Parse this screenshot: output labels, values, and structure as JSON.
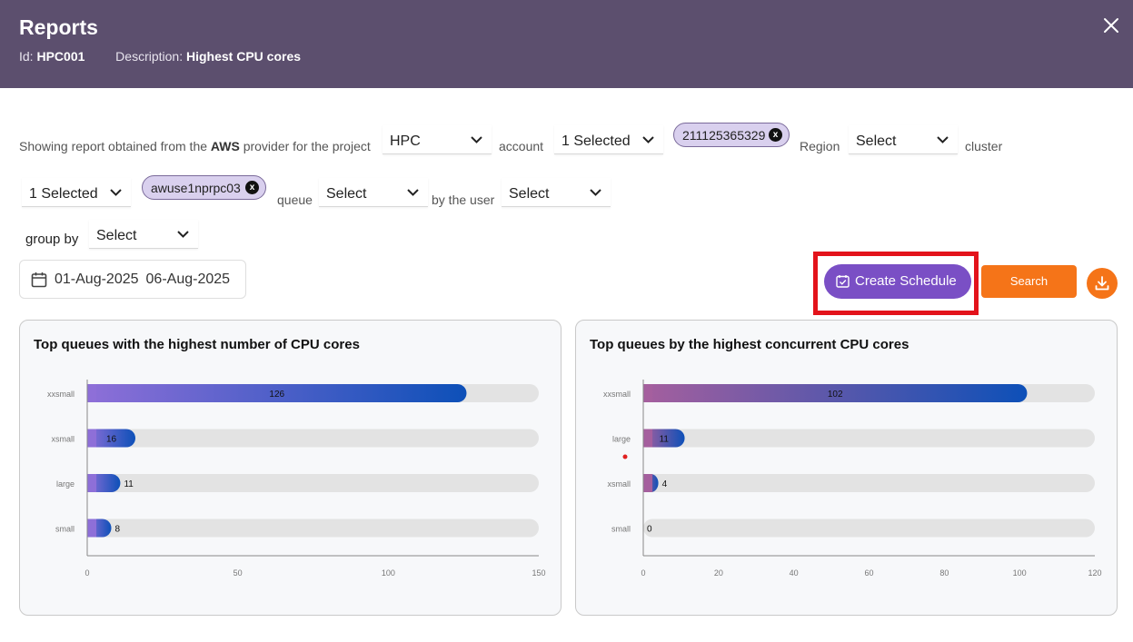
{
  "header": {
    "title": "Reports",
    "id_label": "Id:",
    "id_value": "HPC001",
    "desc_label": "Description:",
    "desc_value": "Highest CPU cores"
  },
  "filters": {
    "intro_prefix": "Showing report obtained from the",
    "provider": "AWS",
    "intro_suffix": "provider for the project",
    "project": "HPC",
    "account_label": "account",
    "account_select": "1 Selected",
    "account_chip": "211125365329",
    "region_label": "Region",
    "region_select": "Select",
    "cluster_label": "cluster",
    "cluster_select": "1 Selected",
    "cluster_chip": "awuse1nprpc03",
    "queue_label": "queue",
    "queue_select": "Select",
    "user_label": "by the user",
    "user_select": "Select",
    "group_label": "group by",
    "group_select": "Select",
    "date_start": "01-Aug-2025",
    "date_end": "06-Aug-2025",
    "chip_remove": "x"
  },
  "actions": {
    "schedule_label": "Create Schedule",
    "search_label": "Search"
  },
  "colors": {
    "header_bg": "#5c4f6e",
    "schedule_btn": "#7a4fc5",
    "search_btn": "#f57418",
    "highlight": "#e3131b"
  },
  "chart_data": [
    {
      "type": "bar",
      "orientation": "horizontal",
      "title": "Top queues with the highest number of CPU cores",
      "categories": [
        "xxsmall",
        "xsmall",
        "large",
        "small"
      ],
      "values": [
        126,
        16,
        11,
        8
      ],
      "xlim": [
        0,
        150
      ],
      "xticks": [
        0,
        50,
        100,
        150
      ],
      "grid": false
    },
    {
      "type": "bar",
      "orientation": "horizontal",
      "title": "Top queues by the highest concurrent CPU cores",
      "categories": [
        "xxsmall",
        "large",
        "xsmall",
        "small"
      ],
      "values": [
        102,
        11,
        4,
        0
      ],
      "xlim": [
        0,
        120
      ],
      "xticks": [
        0,
        20,
        40,
        60,
        80,
        100,
        120
      ],
      "grid": false
    }
  ]
}
